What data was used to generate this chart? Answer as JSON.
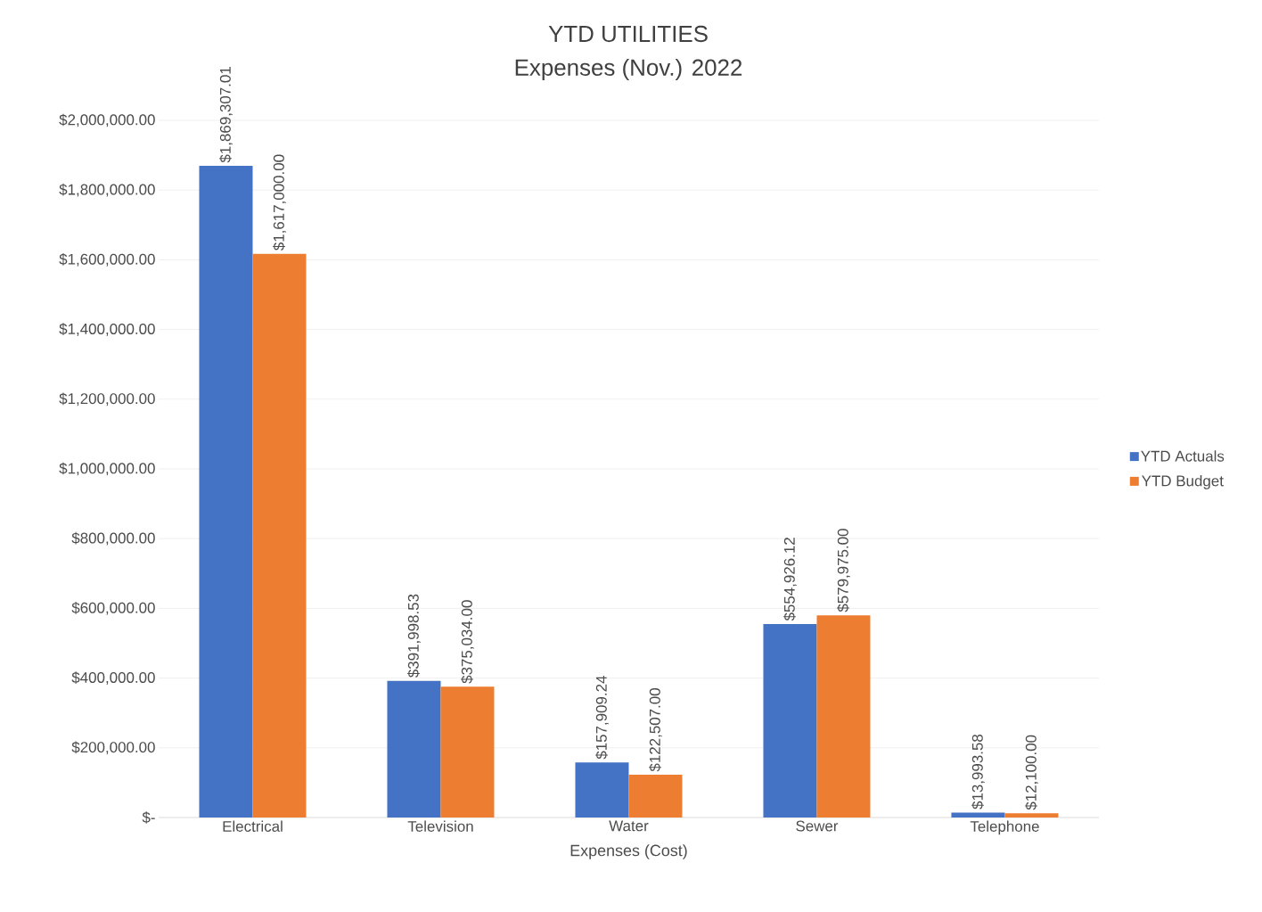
{
  "chart_data": {
    "type": "bar",
    "title": "YTD UTILITIES",
    "subtitle": "Expenses (Nov.) 2022",
    "xlabel": "Expenses (Cost)",
    "categories": [
      "Electrical",
      "Television",
      "Water",
      "Sewer",
      "Telephone"
    ],
    "series": [
      {
        "name": "YTD Actuals",
        "color": "#4472c4",
        "values": [
          1869307.01,
          391998.53,
          157909.24,
          554926.12,
          13993.58
        ],
        "value_labels": [
          "$1,869,307.01",
          "$391,998.53",
          "$157,909.24",
          "$554,926.12",
          "$13,993.58"
        ]
      },
      {
        "name": "YTD Budget",
        "color": "#ed7d31",
        "values": [
          1617000.0,
          375034.0,
          122507.0,
          579975.0,
          12100.0
        ],
        "value_labels": [
          "$1,617,000.00",
          "$375,034.00",
          "$122,507.00",
          "$579,975.00",
          "$12,100.00"
        ]
      }
    ],
    "ylim": [
      0,
      2000000
    ],
    "yticks": [
      {
        "value": 0,
        "label": "$-"
      },
      {
        "value": 200000,
        "label": "$200,000.00"
      },
      {
        "value": 400000,
        "label": "$400,000.00"
      },
      {
        "value": 600000,
        "label": "$600,000.00"
      },
      {
        "value": 800000,
        "label": "$800,000.00"
      },
      {
        "value": 1000000,
        "label": "$1,000,000.00"
      },
      {
        "value": 1200000,
        "label": "$1,200,000.00"
      },
      {
        "value": 1400000,
        "label": "$1,400,000.00"
      },
      {
        "value": 1600000,
        "label": "$1,600,000.00"
      },
      {
        "value": 1800000,
        "label": "$1,800,000.00"
      },
      {
        "value": 2000000,
        "label": "$2,000,000.00"
      }
    ],
    "grid": "y",
    "legend": "right"
  }
}
